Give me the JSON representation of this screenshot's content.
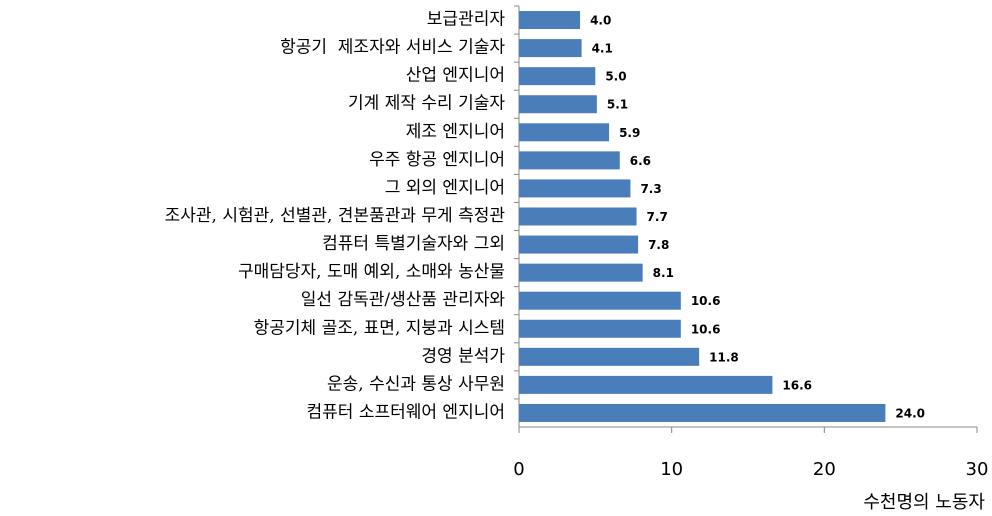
{
  "chart_data": {
    "type": "barh",
    "categories": [
      "보급관리자",
      "항공기  제조자와 서비스 기술자",
      "산업 엔지니어",
      "기계 제작 수리 기술자",
      "제조 엔지니어",
      "우주 항공 엔지니어",
      "그 외의 엔지니어",
      "조사관, 시험관, 선별관, 견본품관과 무게 측정관",
      "컴퓨터 특별기술자와 그외",
      "구매담당자, 도매 예외, 소매와 농산물",
      "일선 감독관/생산품 관리자와",
      "항공기체 골조, 표면, 지붕과 시스템",
      "경영 분석가",
      "운송, 수신과 통상 사무원",
      "컴퓨터 소프터웨어 엔지니어"
    ],
    "values": [
      4.0,
      4.1,
      5.0,
      5.1,
      5.9,
      6.6,
      7.3,
      7.7,
      7.8,
      8.1,
      10.6,
      10.6,
      11.8,
      16.6,
      24.0
    ],
    "value_labels": [
      "4.0",
      "4.1",
      "5.0",
      "5.1",
      "5.9",
      "6.6",
      "7.3",
      "7.7",
      "7.8",
      "8.1",
      "10.6",
      "10.6",
      "11.8",
      "16.6",
      "24.0"
    ],
    "color": "#4a7ebb",
    "xlim": [
      0,
      30
    ],
    "xticks": [
      0,
      10,
      20,
      30
    ],
    "x_label": "수천명의 노동자"
  }
}
